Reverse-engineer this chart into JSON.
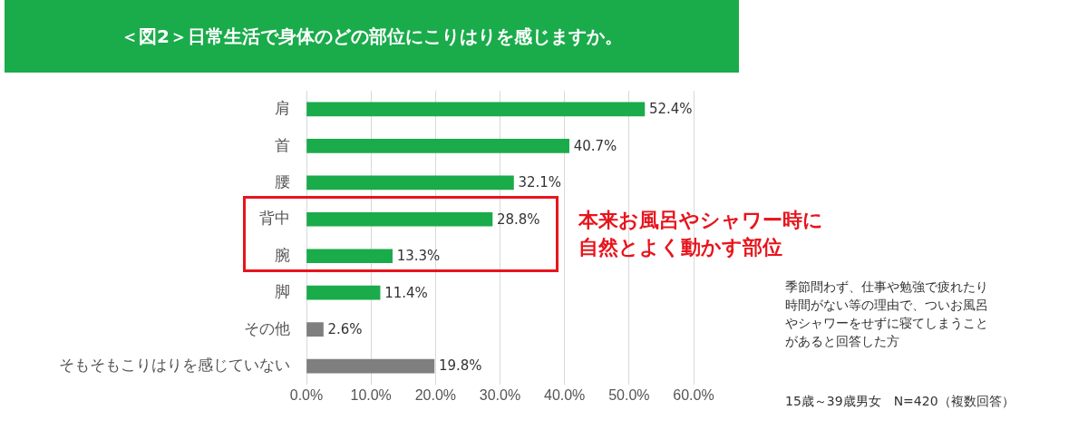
{
  "chart_data": {
    "type": "bar",
    "orientation": "horizontal",
    "title": "＜図2＞日常生活で身体のどの部位にこりはりを感じますか。",
    "categories": [
      "肩",
      "首",
      "腰",
      "背中",
      "腕",
      "脚",
      "その他",
      "そもそもこりはりを感じていない"
    ],
    "values": [
      52.4,
      40.7,
      32.1,
      28.8,
      13.3,
      11.4,
      2.6,
      19.8
    ],
    "colors": [
      "#1aab4b",
      "#1aab4b",
      "#1aab4b",
      "#1aab4b",
      "#1aab4b",
      "#1aab4b",
      "#7f7f7f",
      "#7f7f7f"
    ],
    "value_labels": [
      "52.4%",
      "40.7%",
      "32.1%",
      "28.8%",
      "13.3%",
      "11.4%",
      "2.6%",
      "19.8%"
    ],
    "xlim": [
      0,
      60
    ],
    "xticks": [
      {
        "value": 0,
        "label": "0.0%"
      },
      {
        "value": 10,
        "label": "10.0%"
      },
      {
        "value": 20,
        "label": "20.0%"
      },
      {
        "value": 30,
        "label": "30.0%"
      },
      {
        "value": 40,
        "label": "40.0%"
      },
      {
        "value": 50,
        "label": "50.0%"
      },
      {
        "value": 60,
        "label": "60.0%"
      }
    ],
    "grid": "x",
    "legend": false,
    "annotations": [
      "本来お風呂やシャワー時に自然とよく動かす部位",
      "季節問わず、仕事や勉強で疲れたり時間がない等の理由で、ついお風呂やシャワーをせずに寝てしまうことがあると回答した方",
      "15歳～39歳男女　N=420（複数回答）"
    ]
  }
}
